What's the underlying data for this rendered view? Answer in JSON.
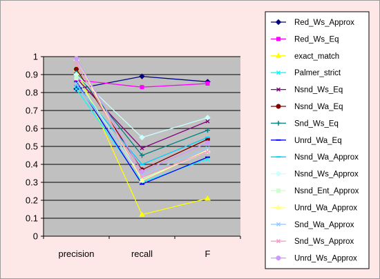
{
  "chart_data": {
    "type": "line",
    "categories": [
      "precision",
      "recall",
      "F"
    ],
    "ylim": [
      0,
      1
    ],
    "yticks": [
      "0",
      "0.1",
      "0.2",
      "0.3",
      "0.4",
      "0.5",
      "0.6",
      "0.7",
      "0.8",
      "0.9",
      "1"
    ],
    "grid": true,
    "legend_position": "right",
    "plot_background": "#c0c0c0",
    "chart_background": "#fde7e7",
    "series": [
      {
        "name": "Red_Ws_Approx",
        "color": "#000080",
        "marker": "diamond",
        "values": [
          0.82,
          0.89,
          0.86
        ]
      },
      {
        "name": "Red_Ws_Eq",
        "color": "#ff00ff",
        "marker": "square",
        "values": [
          0.87,
          0.83,
          0.85
        ]
      },
      {
        "name": "exact_match",
        "color": "#ffff00",
        "marker": "triangle",
        "values": [
          0.93,
          0.12,
          0.21
        ]
      },
      {
        "name": "Palmer_strict",
        "color": "#00ffff",
        "marker": "x",
        "values": [
          0.82,
          0.3,
          0.43
        ]
      },
      {
        "name": "Nsnd_Ws_Eq",
        "color": "#800080",
        "marker": "x",
        "values": [
          0.88,
          0.49,
          0.64
        ]
      },
      {
        "name": "Nsnd_Wa_Eq",
        "color": "#800000",
        "marker": "circle",
        "values": [
          0.93,
          0.37,
          0.54
        ]
      },
      {
        "name": "Snd_Ws_Eq",
        "color": "#008080",
        "marker": "plus",
        "values": [
          0.91,
          0.45,
          0.59
        ]
      },
      {
        "name": "Unrd_Wa_Eq",
        "color": "#0000ff",
        "marker": "dash",
        "values": [
          0.86,
          0.29,
          0.44
        ]
      },
      {
        "name": "Nsnd_Wa_Approx",
        "color": "#00ccff",
        "marker": "dash",
        "values": [
          0.84,
          0.4,
          0.55
        ]
      },
      {
        "name": "Nsnd_Ws_Approx",
        "color": "#ccffff",
        "marker": "diamond",
        "values": [
          0.9,
          0.55,
          0.66
        ]
      },
      {
        "name": "Nsnd_Ent_Approx",
        "color": "#ccffcc",
        "marker": "square",
        "values": [
          0.88,
          0.32,
          0.47
        ]
      },
      {
        "name": "Unrd_Wa_Approx",
        "color": "#ffff99",
        "marker": "triangle",
        "values": [
          0.99,
          0.31,
          0.48
        ]
      },
      {
        "name": "Snd_Wa_Approx",
        "color": "#99ccff",
        "marker": "x",
        "values": [
          0.85,
          0.34,
          0.49
        ]
      },
      {
        "name": "Snd_Ws_Approx",
        "color": "#ff99cc",
        "marker": "x",
        "values": [
          0.96,
          0.33,
          0.47
        ]
      },
      {
        "name": "Unrd_Ws_Approx",
        "color": "#cc99ff",
        "marker": "circle",
        "values": [
          0.99,
          0.36,
          0.52
        ]
      }
    ]
  }
}
